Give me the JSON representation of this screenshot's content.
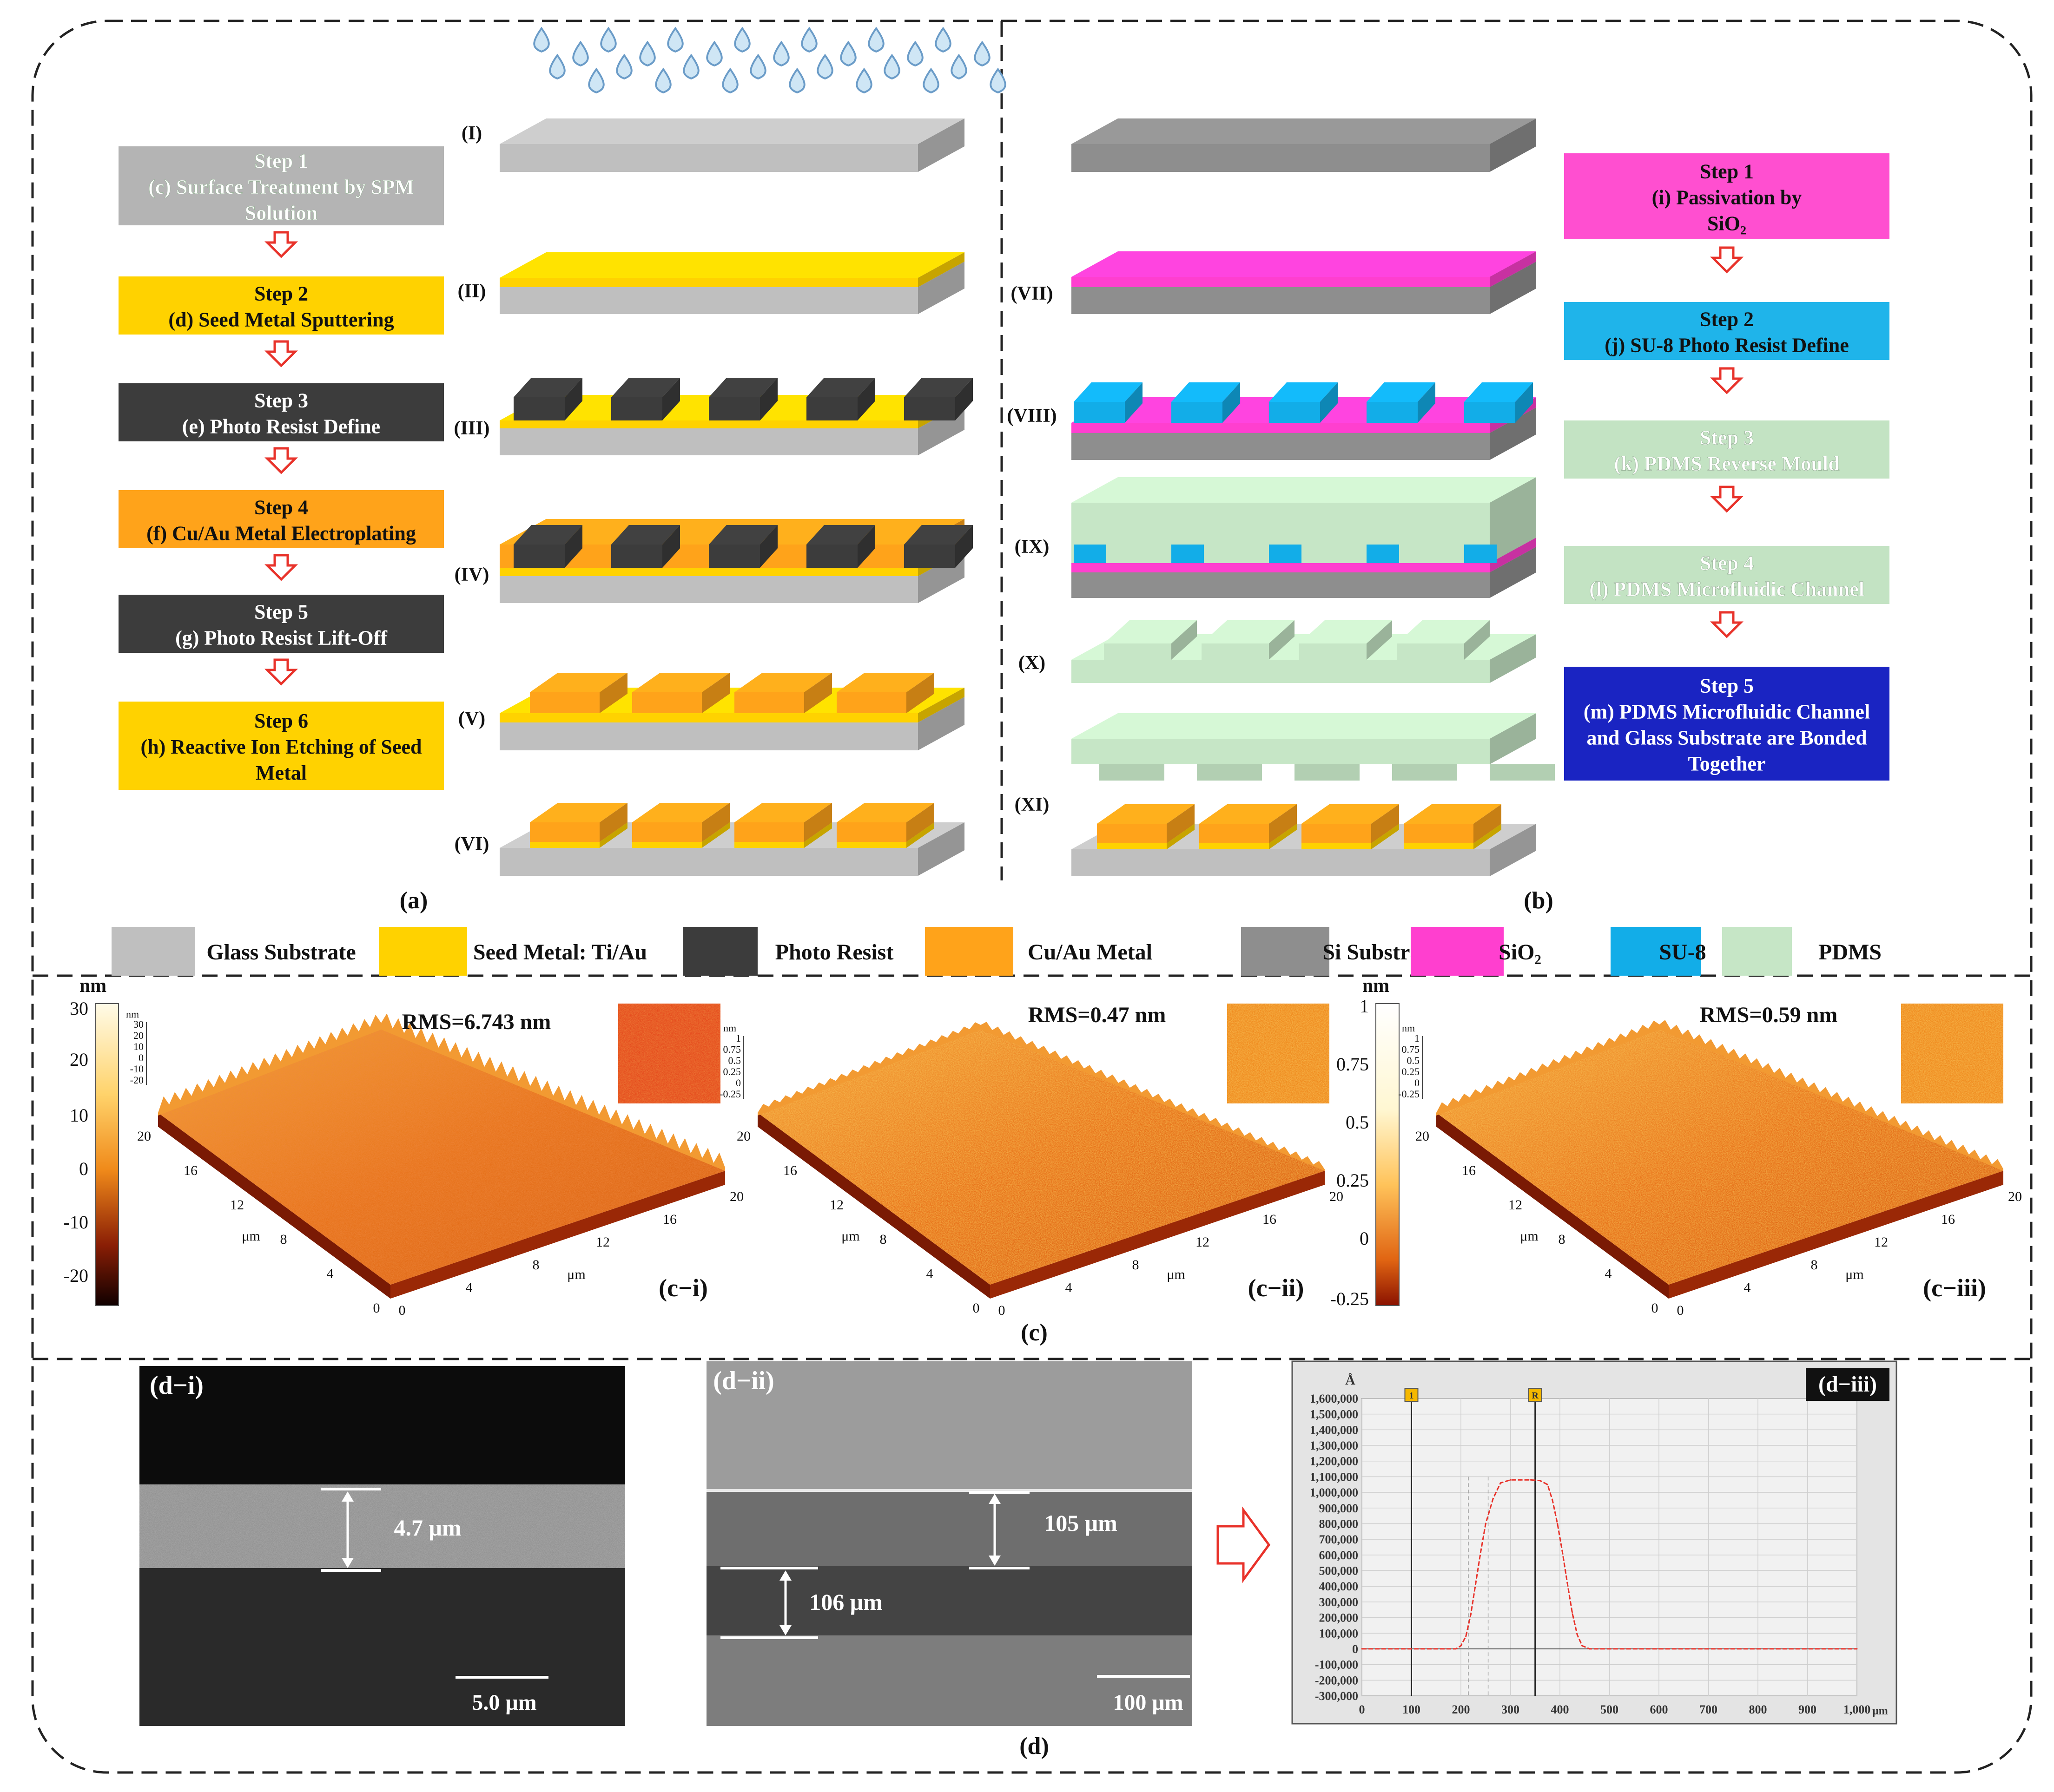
{
  "panel_a": {
    "caption": "(a)",
    "steps": [
      {
        "step": "Step 1",
        "desc_lines": [
          "(c) Surface Treatment by SPM",
          "Solution"
        ],
        "color": "#b4b4b4"
      },
      {
        "step": "Step 2",
        "desc_lines": [
          "(d) Seed Metal Sputtering"
        ],
        "color": "#ffd200"
      },
      {
        "step": "Step 3",
        "desc_lines": [
          "(e) Photo Resist Define"
        ],
        "color": "#3c3c3c"
      },
      {
        "step": "Step 4",
        "desc_lines": [
          "(f) Cu/Au Metal Electroplating"
        ],
        "color": "#ffa31a"
      },
      {
        "step": "Step 5",
        "desc_lines": [
          "(g) Photo Resist Lift-Off"
        ],
        "color": "#3c3c3c"
      },
      {
        "step": "Step 6",
        "desc_lines": [
          "(h) Reactive Ion Etching of Seed",
          "Metal"
        ],
        "color": "#ffd200"
      }
    ],
    "stage_labels": [
      "(I)",
      "(II)",
      "(III)",
      "(IV)",
      "(V)",
      "(VI)"
    ]
  },
  "panel_b": {
    "caption": "(b)",
    "steps": [
      {
        "step": "Step 1",
        "desc_lines": [
          "(i) Passivation by",
          "SiO₂"
        ],
        "color": "#ff4fd0"
      },
      {
        "step": "Step 2",
        "desc_lines": [
          "(j) SU-8 Photo Resist Define"
        ],
        "color": "#1fb4ea"
      },
      {
        "step": "Step 3",
        "desc_lines": [
          "(k) PDMS Reverse Mould"
        ],
        "color": "#c3e3c3"
      },
      {
        "step": "Step 4",
        "desc_lines": [
          "(l) PDMS Microfluidic Channel"
        ],
        "color": "#c3e3c3"
      },
      {
        "step": "Step 5",
        "desc_lines": [
          "(m) PDMS Microfluidic Channel",
          "and Glass Substrate are Bonded",
          "Together"
        ],
        "color": "#1a24c2"
      }
    ],
    "stage_labels": [
      "(VII)",
      "(VIII)",
      "(IX)",
      "(X)",
      "(XI)"
    ]
  },
  "legend": [
    {
      "label": "Glass Substrate",
      "color": "#bfbfbf"
    },
    {
      "label": "Seed Metal: Ti/Au",
      "color": "#ffd200"
    },
    {
      "label": "Photo Resist",
      "color": "#3c3c3c"
    },
    {
      "label": "Cu/Au Metal",
      "color": "#ffa31a"
    },
    {
      "label": "Si Substrate",
      "color": "#8e8e8e"
    },
    {
      "label": "SiO₂",
      "color": "#ff3fcf"
    },
    {
      "label": "SU-8",
      "color": "#12ade8"
    },
    {
      "label": "PDMS",
      "color": "#c6e6c6"
    }
  ],
  "panel_c": {
    "caption": "(c)",
    "colorbar_unit": "nm",
    "colorbar_1_ticks": [
      "30",
      "20",
      "10",
      "0",
      "-10",
      "-20"
    ],
    "colorbar_2_ticks": [
      "1",
      "0.75",
      "0.5",
      "0.25",
      "0",
      "-0.25"
    ],
    "afm_images": [
      {
        "label": "(c−i)",
        "rms": "RMS=6.743 nm",
        "zticks": [
          "30",
          "20",
          "10",
          "0",
          "-10",
          "-20"
        ]
      },
      {
        "label": "(c−ii)",
        "rms": "RMS=0.47 nm",
        "zticks": [
          "1",
          "0.75",
          "0.5",
          "0.25",
          "0",
          "-0.25"
        ]
      },
      {
        "label": "(c−iii)",
        "rms": "RMS=0.59 nm",
        "zticks": [
          "1",
          "0.75",
          "0.5",
          "0.25",
          "0",
          "-0.25"
        ]
      }
    ],
    "axis_unit": "μm",
    "axis_ticks": [
      "0",
      "4",
      "8",
      "12",
      "16",
      "20"
    ]
  },
  "panel_d": {
    "caption": "(d)",
    "sem_1": {
      "label": "(d−i)",
      "thickness": "4.7 μm",
      "scale_bar": "5.0 μm"
    },
    "sem_2": {
      "label": "(d−ii)",
      "thickness_top": "105 μm",
      "thickness_bottom": "106 μm",
      "scale_bar": "100 μm"
    },
    "profile": {
      "label": "(d−iii)",
      "y_unit": "Å",
      "x_unit": "μm",
      "cursor_1": "1",
      "cursor_2": "R"
    }
  },
  "chart_data": {
    "type": "line",
    "title": "(d−iii)",
    "xlabel": "μm",
    "ylabel": "Å",
    "xlim": [
      0,
      1000
    ],
    "ylim": [
      -300000,
      1600000
    ],
    "x_ticks": [
      "0",
      "100",
      "200",
      "300",
      "400",
      "500",
      "600",
      "700",
      "800",
      "900",
      "1,000"
    ],
    "y_ticks": [
      "1,600,000",
      "1,500,000",
      "1,400,000",
      "1,300,000",
      "1,200,000",
      "1,100,000",
      "1,000,000",
      "900,000",
      "800,000",
      "700,000",
      "600,000",
      "500,000",
      "400,000",
      "300,000",
      "200,000",
      "100,000",
      "0",
      "-100,000",
      "-200,000",
      "-300,000"
    ],
    "series": [
      {
        "name": "profile",
        "x": [
          0,
          190,
          200,
          210,
          220,
          230,
          240,
          250,
          265,
          280,
          300,
          320,
          340,
          360,
          375,
          385,
          395,
          405,
          415,
          425,
          435,
          445,
          460,
          600,
          800,
          1000
        ],
        "y": [
          0,
          0,
          20000,
          80000,
          220000,
          420000,
          620000,
          800000,
          960000,
          1060000,
          1080000,
          1080000,
          1080000,
          1075000,
          1050000,
          950000,
          800000,
          620000,
          420000,
          230000,
          90000,
          20000,
          0,
          0,
          0,
          0
        ]
      }
    ],
    "cursors": [
      100,
      350
    ]
  }
}
